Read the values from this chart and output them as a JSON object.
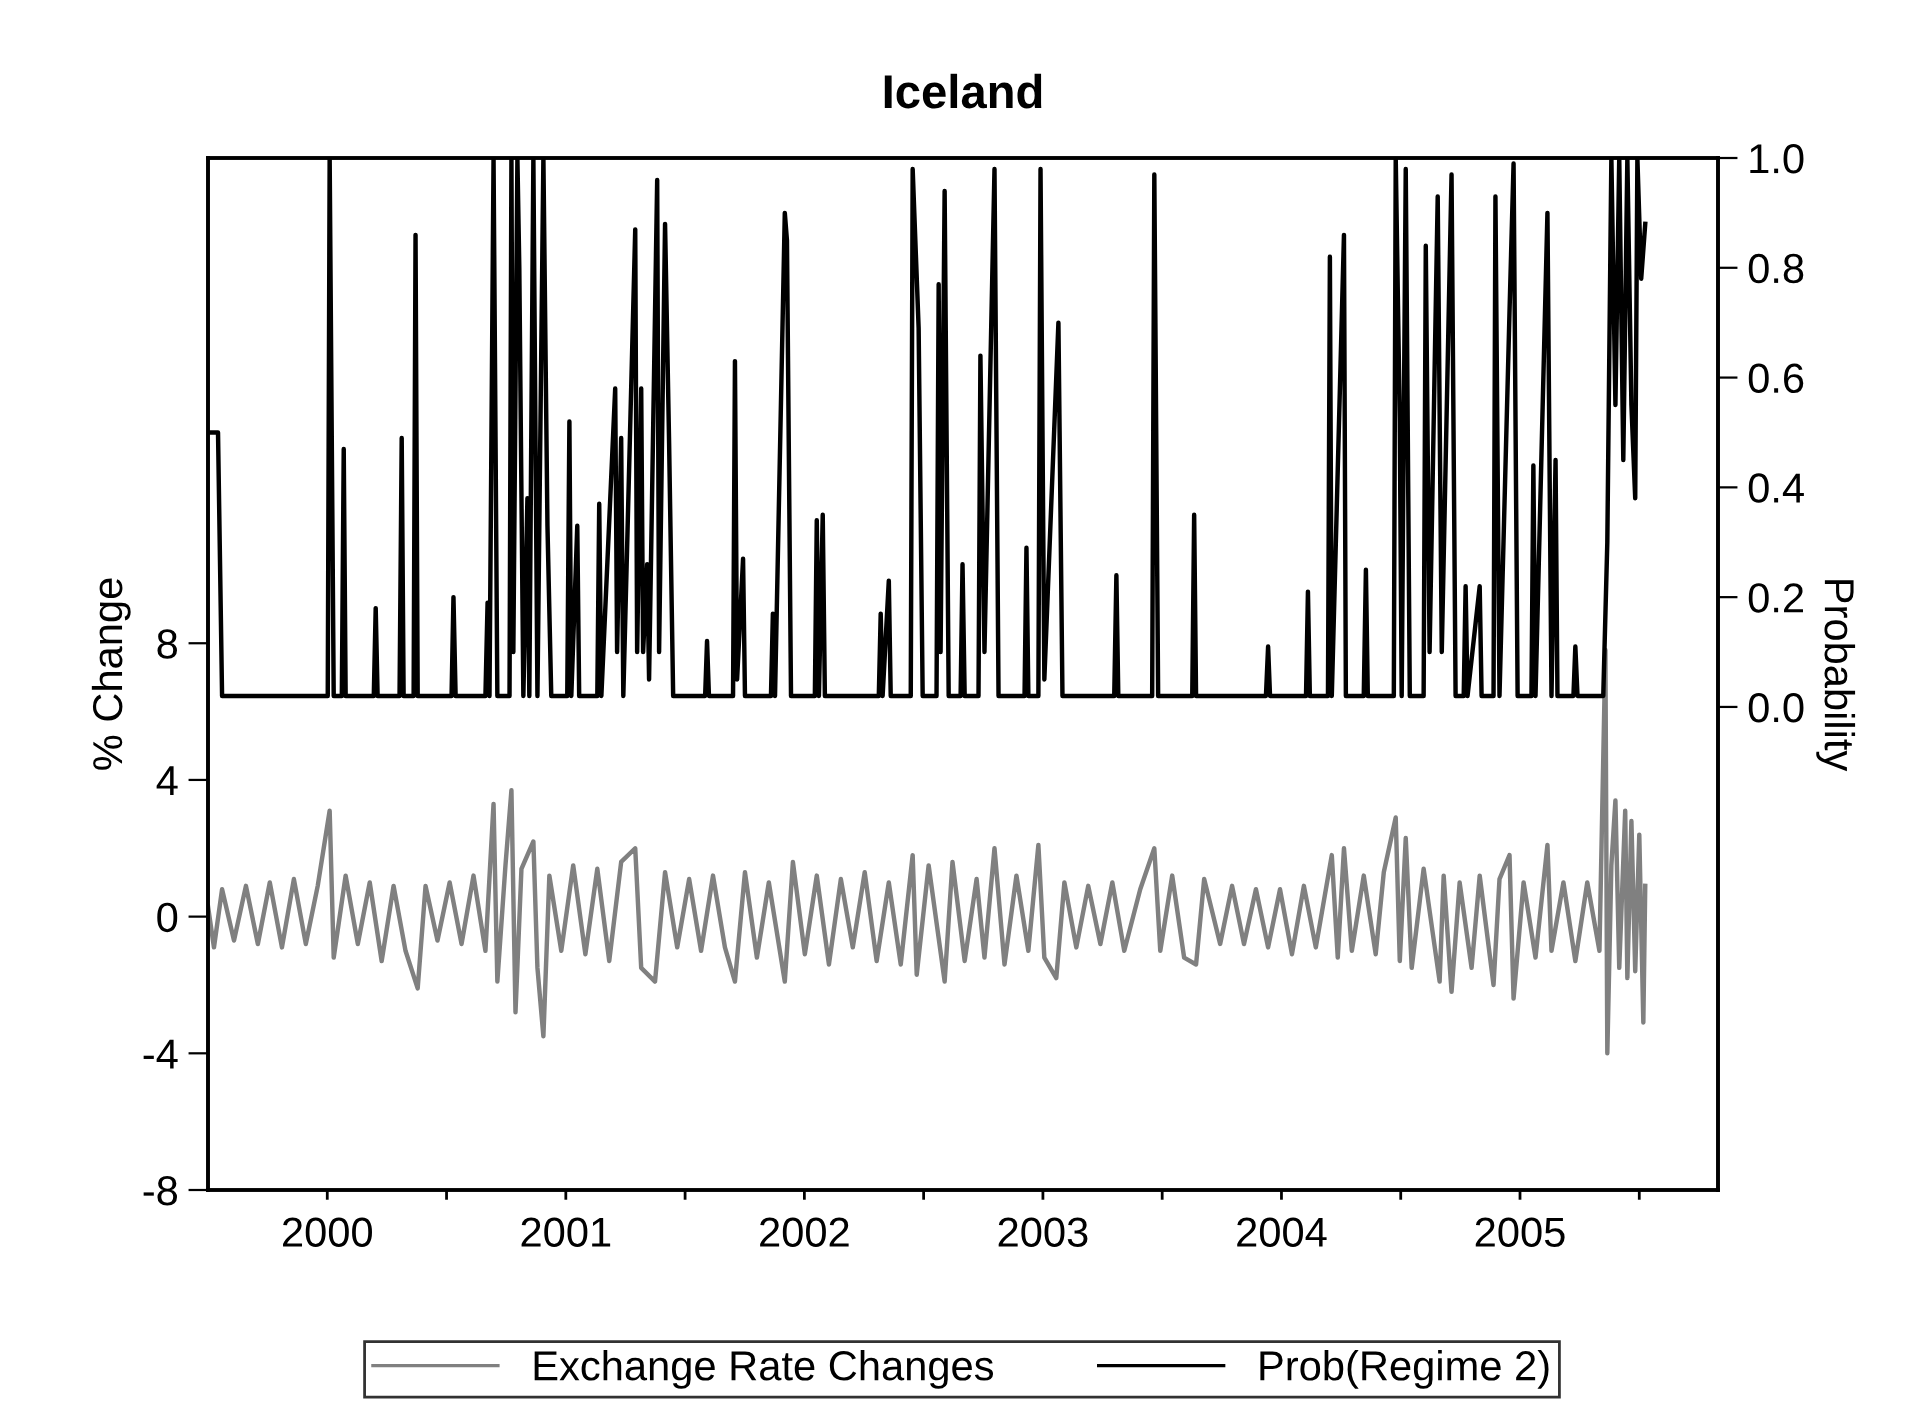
{
  "chart_data": {
    "type": "line",
    "title": "Iceland",
    "ylabel": "% Change",
    "y2label": "Probability",
    "xlim": [
      2000.0,
      2006.33
    ],
    "xticks": [
      {
        "value": 2000.5,
        "label": "2000"
      },
      {
        "value": 2001,
        "label": null
      },
      {
        "value": 2001.5,
        "label": "2001"
      },
      {
        "value": 2002,
        "label": null
      },
      {
        "value": 2002.5,
        "label": "2002"
      },
      {
        "value": 2003,
        "label": null
      },
      {
        "value": 2003.5,
        "label": "2003"
      },
      {
        "value": 2004,
        "label": null
      },
      {
        "value": 2004.5,
        "label": "2004"
      },
      {
        "value": 2005,
        "label": null
      },
      {
        "value": 2005.5,
        "label": "2005"
      },
      {
        "value": 2006,
        "label": null
      }
    ],
    "ylim": [
      -8,
      22.2
    ],
    "yticks": [
      -8,
      -4,
      0,
      4,
      8
    ],
    "y2lim": [
      -0.88,
      1.0
    ],
    "y2ticks": [
      {
        "value": 0,
        "label": "0.0"
      },
      {
        "value": 0.2,
        "label": "0.2"
      },
      {
        "value": 0.4,
        "label": "0.4"
      },
      {
        "value": 0.6,
        "label": "0.6"
      },
      {
        "value": 0.8,
        "label": "0.8"
      },
      {
        "value": 1.0,
        "label": "1.0"
      }
    ],
    "grid": false,
    "legend": "bottom",
    "series": [
      {
        "name": "Exchange Rate Changes",
        "color": "#808080",
        "x": [
          2000.0,
          2000.025,
          2000.059,
          2000.109,
          2000.159,
          2000.209,
          2000.259,
          2000.31,
          2000.36,
          2000.41,
          2000.46,
          2000.51,
          2000.527,
          2000.577,
          2000.628,
          2000.678,
          2000.728,
          2000.778,
          2000.828,
          2000.879,
          2000.912,
          2000.962,
          2001.013,
          2001.063,
          2001.113,
          2001.163,
          2001.197,
          2001.213,
          2001.247,
          2001.272,
          2001.289,
          2001.314,
          2001.364,
          2001.381,
          2001.406,
          2001.431,
          2001.481,
          2001.531,
          2001.582,
          2001.632,
          2001.682,
          2001.732,
          2001.791,
          2001.816,
          2001.874,
          2001.916,
          2001.967,
          2002.017,
          2002.067,
          2002.117,
          2002.167,
          2002.209,
          2002.251,
          2002.301,
          2002.351,
          2002.418,
          2002.452,
          2002.502,
          2002.552,
          2002.603,
          2002.653,
          2002.703,
          2002.753,
          2002.803,
          2002.854,
          2002.904,
          2002.954,
          2002.971,
          2003.021,
          2003.088,
          2003.121,
          2003.172,
          2003.222,
          2003.255,
          2003.297,
          2003.339,
          2003.389,
          2003.439,
          2003.481,
          2003.506,
          2003.556,
          2003.59,
          2003.64,
          2003.69,
          2003.741,
          2003.791,
          2003.841,
          2003.908,
          2003.967,
          2003.992,
          2004.042,
          2004.092,
          2004.142,
          2004.176,
          2004.243,
          2004.293,
          2004.343,
          2004.393,
          2004.444,
          2004.494,
          2004.544,
          2004.594,
          2004.644,
          2004.711,
          2004.736,
          2004.762,
          2004.795,
          2004.845,
          2004.895,
          2004.929,
          2004.979,
          2004.996,
          2005.021,
          2005.046,
          2005.096,
          2005.163,
          2005.18,
          2005.213,
          2005.247,
          2005.297,
          2005.331,
          2005.389,
          2005.414,
          2005.456,
          2005.473,
          2005.515,
          2005.565,
          2005.615,
          2005.632,
          2005.682,
          2005.732,
          2005.782,
          2005.833,
          2005.858,
          2005.866,
          2005.883,
          2005.9,
          2005.916,
          2005.941,
          2005.95,
          2005.967,
          2005.983,
          2006.0,
          2006.017,
          2006.025
        ],
        "values": [
          0.3,
          -0.9,
          0.8,
          -0.7,
          0.9,
          -0.8,
          1.0,
          -0.9,
          1.1,
          -0.8,
          0.9,
          3.1,
          -1.2,
          1.2,
          -0.8,
          1.0,
          -1.3,
          0.9,
          -1.0,
          -2.1,
          0.9,
          -0.7,
          1.0,
          -0.8,
          1.2,
          -1.0,
          3.3,
          -1.9,
          1.5,
          3.7,
          -2.8,
          1.4,
          2.2,
          -1.5,
          -3.5,
          1.2,
          -1.0,
          1.5,
          -1.1,
          1.4,
          -1.3,
          1.6,
          2.0,
          -1.5,
          -1.9,
          1.3,
          -0.9,
          1.1,
          -1.0,
          1.2,
          -0.9,
          -1.9,
          1.3,
          -1.2,
          1.0,
          -1.9,
          1.6,
          -1.1,
          1.2,
          -1.4,
          1.1,
          -0.9,
          1.3,
          -1.3,
          1.0,
          -1.4,
          1.8,
          -1.7,
          1.5,
          -1.9,
          1.6,
          -1.3,
          1.1,
          -1.2,
          2.0,
          -1.4,
          1.2,
          -1.0,
          2.1,
          -1.2,
          -1.8,
          1.0,
          -0.9,
          0.9,
          -0.8,
          1.0,
          -1.0,
          0.8,
          2.0,
          -1.0,
          1.2,
          -1.2,
          -1.4,
          1.1,
          -0.8,
          0.9,
          -0.8,
          0.8,
          -0.9,
          0.8,
          -1.1,
          0.9,
          -0.9,
          1.8,
          -1.2,
          2.0,
          -1.0,
          1.2,
          -1.1,
          1.3,
          2.9,
          -1.3,
          2.3,
          -1.5,
          1.4,
          -1.9,
          1.2,
          -2.2,
          1.0,
          -1.5,
          1.2,
          -2.0,
          1.1,
          1.8,
          -2.4,
          1.0,
          -1.2,
          2.1,
          -1.0,
          1.0,
          -1.3,
          1.0,
          -1.0,
          7.8,
          -4.0,
          1.5,
          3.4,
          -1.5,
          3.1,
          -1.8,
          2.8,
          -1.6,
          2.4,
          -3.1,
          0.9
        ]
      },
      {
        "name": "Prob(Regime 2)",
        "color": "#000000",
        "axis": "y2",
        "x": [
          2000.0,
          2000.042,
          2000.059,
          2000.502,
          2000.51,
          2000.527,
          2000.561,
          2000.569,
          2000.577,
          2000.695,
          2000.703,
          2000.711,
          2000.803,
          2000.812,
          2000.82,
          2000.862,
          2000.87,
          2000.879,
          2001.021,
          2001.029,
          2001.038,
          2001.163,
          2001.172,
          2001.18,
          2001.197,
          2001.213,
          2001.264,
          2001.272,
          2001.28,
          2001.297,
          2001.305,
          2001.322,
          2001.339,
          2001.347,
          2001.364,
          2001.381,
          2001.406,
          2001.423,
          2001.439,
          2001.506,
          2001.515,
          2001.523,
          2001.548,
          2001.556,
          2001.632,
          2001.64,
          2001.649,
          2001.707,
          2001.715,
          2001.732,
          2001.741,
          2001.791,
          2001.799,
          2001.816,
          2001.824,
          2001.841,
          2001.849,
          2001.883,
          2001.891,
          2001.916,
          2001.933,
          2001.95,
          2002.084,
          2002.092,
          2002.1,
          2002.201,
          2002.209,
          2002.218,
          2002.243,
          2002.251,
          2002.36,
          2002.368,
          2002.377,
          2002.418,
          2002.427,
          2002.444,
          2002.544,
          2002.552,
          2002.561,
          2002.577,
          2002.586,
          2002.812,
          2002.82,
          2002.828,
          2002.854,
          2002.862,
          2002.946,
          2002.954,
          2002.979,
          2002.996,
          2003.054,
          2003.063,
          2003.071,
          2003.088,
          2003.105,
          2003.155,
          2003.163,
          2003.172,
          2003.23,
          2003.238,
          2003.255,
          2003.297,
          2003.314,
          2003.423,
          2003.431,
          2003.439,
          2003.481,
          2003.49,
          2003.506,
          2003.565,
          2003.582,
          2003.799,
          2003.808,
          2003.816,
          2003.958,
          2003.967,
          2003.983,
          2004.126,
          2004.134,
          2004.142,
          2004.435,
          2004.444,
          2004.452,
          2004.603,
          2004.611,
          2004.619,
          2004.695,
          2004.703,
          2004.711,
          2004.762,
          2004.77,
          2004.845,
          2004.854,
          2004.862,
          2004.971,
          2004.979,
          2004.996,
          2005.004,
          2005.021,
          2005.038,
          2005.096,
          2005.105,
          2005.121,
          2005.155,
          2005.172,
          2005.213,
          2005.23,
          2005.264,
          2005.272,
          2005.28,
          2005.331,
          2005.339,
          2005.389,
          2005.397,
          2005.414,
          2005.456,
          2005.473,
          2005.49,
          2005.548,
          2005.556,
          2005.565,
          2005.615,
          2005.632,
          2005.649,
          2005.657,
          2005.724,
          2005.732,
          2005.741,
          2005.849,
          2005.866,
          2005.883,
          2005.9,
          2005.916,
          2005.933,
          2005.95,
          2005.967,
          2005.983,
          2005.992,
          2006.008,
          2006.025
        ],
        "values": [
          0.5,
          0.5,
          0.02,
          0.02,
          1.0,
          0.02,
          0.02,
          0.47,
          0.02,
          0.02,
          0.18,
          0.02,
          0.02,
          0.49,
          0.02,
          0.02,
          0.86,
          0.02,
          0.02,
          0.2,
          0.02,
          0.02,
          0.19,
          0.02,
          1.0,
          0.02,
          0.02,
          1.0,
          0.1,
          1.0,
          0.8,
          0.02,
          0.38,
          0.02,
          1.0,
          0.02,
          1.0,
          0.33,
          0.02,
          0.02,
          0.52,
          0.02,
          0.33,
          0.02,
          0.02,
          0.37,
          0.02,
          0.58,
          0.1,
          0.49,
          0.02,
          0.87,
          0.1,
          0.58,
          0.1,
          0.26,
          0.05,
          0.96,
          0.1,
          0.88,
          0.48,
          0.02,
          0.02,
          0.12,
          0.02,
          0.02,
          0.63,
          0.05,
          0.27,
          0.02,
          0.02,
          0.17,
          0.02,
          0.9,
          0.85,
          0.02,
          0.02,
          0.34,
          0.02,
          0.35,
          0.02,
          0.02,
          0.17,
          0.02,
          0.23,
          0.02,
          0.02,
          0.98,
          0.69,
          0.02,
          0.02,
          0.77,
          0.1,
          0.94,
          0.02,
          0.02,
          0.26,
          0.02,
          0.02,
          0.64,
          0.1,
          0.98,
          0.02,
          0.02,
          0.29,
          0.02,
          0.02,
          0.98,
          0.05,
          0.7,
          0.02,
          0.02,
          0.24,
          0.02,
          0.02,
          0.97,
          0.02,
          0.02,
          0.35,
          0.02,
          0.02,
          0.11,
          0.02,
          0.02,
          0.21,
          0.02,
          0.02,
          0.82,
          0.02,
          0.86,
          0.02,
          0.02,
          0.25,
          0.02,
          0.02,
          1.0,
          0.52,
          0.02,
          0.98,
          0.02,
          0.02,
          0.84,
          0.1,
          0.93,
          0.1,
          0.97,
          0.02,
          0.02,
          0.22,
          0.02,
          0.22,
          0.02,
          0.02,
          0.93,
          0.02,
          0.72,
          0.99,
          0.02,
          0.02,
          0.44,
          0.02,
          0.9,
          0.02,
          0.45,
          0.02,
          0.02,
          0.11,
          0.02,
          0.02,
          0.3,
          1.0,
          0.55,
          1.0,
          0.45,
          1.0,
          0.55,
          0.38,
          1.0,
          0.78,
          0.88
        ]
      }
    ]
  }
}
